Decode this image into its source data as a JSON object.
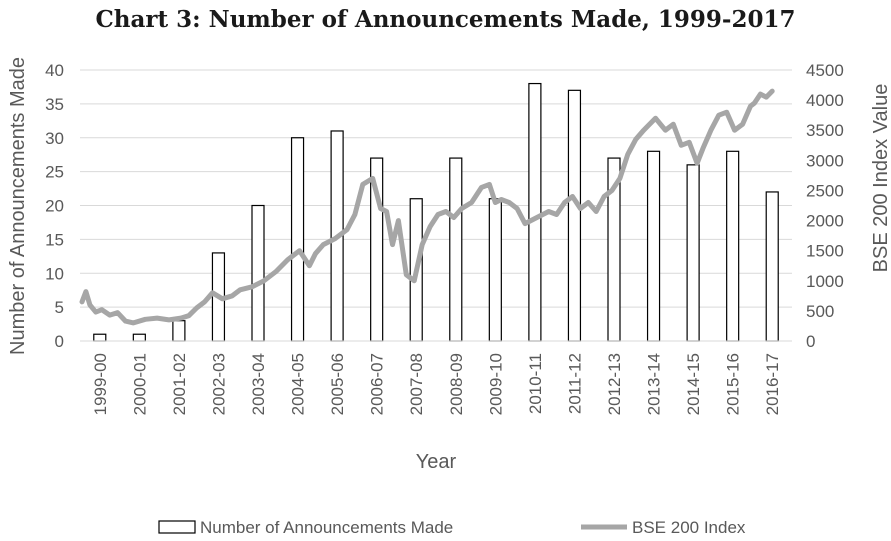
{
  "chart_data": {
    "type": "bar",
    "title": "Chart 3: Number of Announcements Made, 1999-2017",
    "xlabel": "Year",
    "ylabel": "Number of Announcements Made",
    "y2label": "BSE 200 Index Value",
    "ylim": [
      0,
      40
    ],
    "y2lim": [
      0,
      4500
    ],
    "yticks": [
      0,
      5,
      10,
      15,
      20,
      25,
      30,
      35,
      40
    ],
    "y2ticks": [
      0,
      500,
      1000,
      1500,
      2000,
      2500,
      3000,
      3500,
      4000,
      4500
    ],
    "categories": [
      "1999-00",
      "2000-01",
      "2001-02",
      "2002-03",
      "2003-04",
      "2004-05",
      "2005-06",
      "2006-07",
      "2007-08",
      "2008-09",
      "2009-10",
      "2010-11",
      "2011-12",
      "2012-13",
      "2013-14",
      "2014-15",
      "2015-16",
      "2016-17"
    ],
    "series": [
      {
        "name": "Number of Announcements Made",
        "type": "bar",
        "axis": "left",
        "color": "#ffffff",
        "stroke": "#000000",
        "values": [
          1,
          1,
          3,
          13,
          20,
          30,
          31,
          27,
          21,
          27,
          21,
          38,
          37,
          27,
          28,
          26,
          28,
          22
        ]
      },
      {
        "name": "BSE 200 Index",
        "type": "line",
        "axis": "right",
        "color": "#a6a6a6",
        "x": [
          0,
          0.1,
          0.2,
          0.35,
          0.5,
          0.7,
          0.9,
          1.1,
          1.3,
          1.6,
          1.9,
          2.2,
          2.5,
          2.7,
          2.9,
          3.1,
          3.3,
          3.55,
          3.8,
          4.0,
          4.3,
          4.6,
          4.9,
          5.2,
          5.5,
          5.75,
          5.9,
          6.1,
          6.4,
          6.7,
          6.9,
          7.1,
          7.35,
          7.55,
          7.7,
          7.85,
          8.0,
          8.2,
          8.4,
          8.6,
          8.8,
          9.0,
          9.2,
          9.4,
          9.6,
          9.85,
          10.1,
          10.3,
          10.45,
          10.6,
          10.8,
          11.0,
          11.2,
          11.5,
          11.8,
          12.0,
          12.2,
          12.4,
          12.6,
          12.8,
          13.0,
          13.2,
          13.4,
          13.6,
          13.8,
          14.0,
          14.2,
          14.5,
          14.75,
          14.95,
          15.15,
          15.35,
          15.55,
          15.7,
          15.9,
          16.1,
          16.3,
          16.5,
          16.7,
          16.9,
          17.0,
          17.15,
          17.3,
          17.45
        ],
        "values": [
          650,
          820,
          600,
          480,
          520,
          430,
          470,
          330,
          300,
          360,
          380,
          350,
          380,
          420,
          550,
          650,
          800,
          700,
          750,
          850,
          900,
          1000,
          1150,
          1350,
          1500,
          1250,
          1450,
          1600,
          1700,
          1850,
          2100,
          2600,
          2700,
          2200,
          2150,
          1600,
          2000,
          1100,
          1000,
          1600,
          1900,
          2100,
          2150,
          2050,
          2200,
          2300,
          2550,
          2600,
          2300,
          2350,
          2300,
          2200,
          1950,
          2050,
          2150,
          2100,
          2300,
          2400,
          2200,
          2300,
          2150,
          2400,
          2500,
          2700,
          3100,
          3350,
          3500,
          3700,
          3500,
          3600,
          3250,
          3300,
          2950,
          3200,
          3500,
          3750,
          3800,
          3500,
          3600,
          3900,
          3950,
          4100,
          4050,
          4150
        ]
      }
    ],
    "legend_position": "bottom",
    "grid": true
  }
}
